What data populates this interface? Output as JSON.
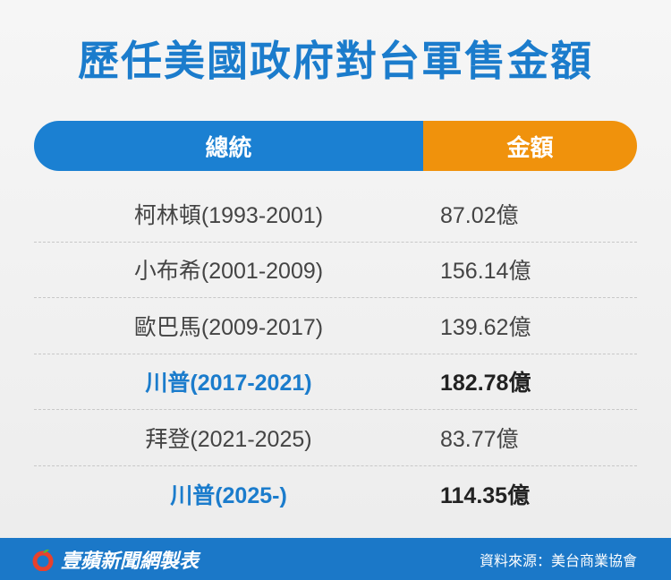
{
  "title": "歷任美國政府對台軍售金額",
  "table": {
    "header": [
      "總統",
      "金額"
    ],
    "rows": [
      {
        "president": "柯林頓(1993-2001)",
        "amount": "87.02億",
        "highlight": false
      },
      {
        "president": "小布希(2001-2009)",
        "amount": "156.14億",
        "highlight": false
      },
      {
        "president": "歐巴馬(2009-2017)",
        "amount": "139.62億",
        "highlight": false
      },
      {
        "president": "川普(2017-2021)",
        "amount": "182.78億",
        "highlight": true
      },
      {
        "president": "拜登(2021-2025)",
        "amount": "83.77億",
        "highlight": false
      },
      {
        "president": "川普(2025-)",
        "amount": "114.35億",
        "highlight": true
      }
    ]
  },
  "footer": {
    "brand": "壹蘋新聞網製表",
    "source": "資料來源：美台商業協會"
  }
}
